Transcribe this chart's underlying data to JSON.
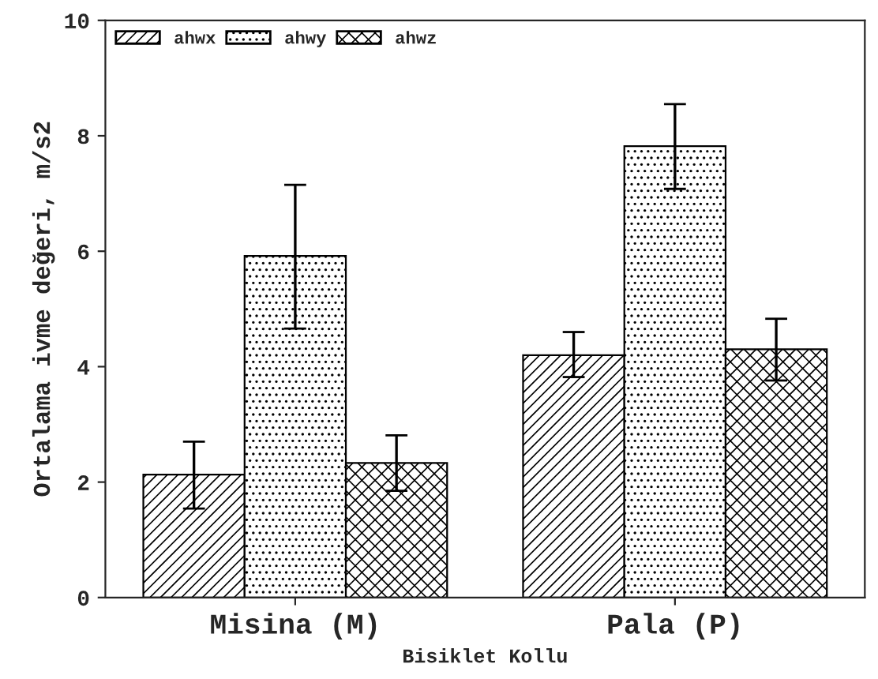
{
  "chart_data": {
    "type": "bar",
    "xlabel": "Bisiklet Kollu",
    "ylabel": "Ortalama ivme değeri, m/s2",
    "categories": [
      "Misina (M)",
      "Pala (P)"
    ],
    "series": [
      {
        "name": "ahwx",
        "color": "#000000",
        "values": [
          2.13,
          4.2
        ],
        "errors": [
          [
            1.54,
            2.7
          ],
          [
            3.82,
            4.6
          ]
        ]
      },
      {
        "name": "ahwy",
        "color": "#000000",
        "values": [
          5.92,
          7.82
        ],
        "errors": [
          [
            4.66,
            7.15
          ],
          [
            7.08,
            8.55
          ]
        ]
      },
      {
        "name": "ahwz",
        "color": "#000000",
        "values": [
          2.33,
          4.3
        ],
        "errors": [
          [
            1.85,
            2.81
          ],
          [
            3.76,
            4.83
          ]
        ]
      }
    ],
    "ylim": [
      0,
      10
    ],
    "yticks": [
      0,
      2,
      4,
      6,
      8,
      10
    ],
    "grid": false,
    "legend": "top left"
  }
}
